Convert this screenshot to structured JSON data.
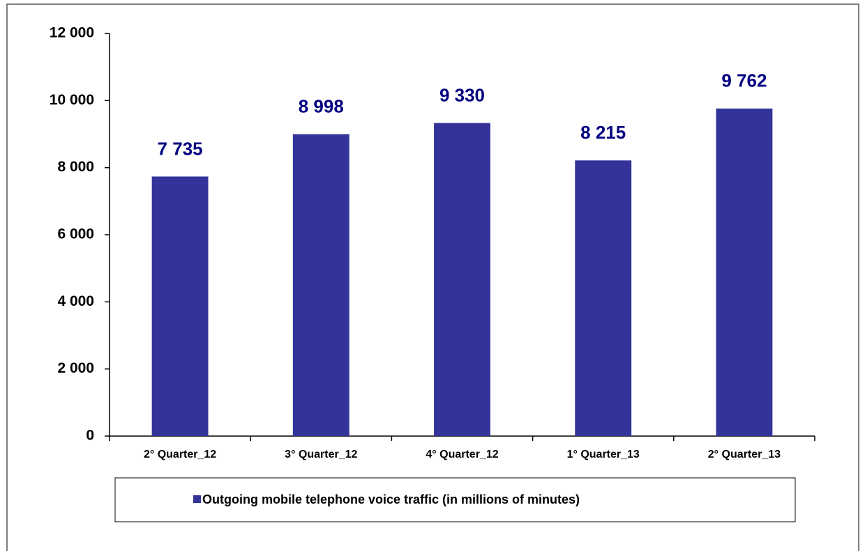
{
  "chart_data": {
    "type": "bar",
    "categories": [
      "2° Quarter_12",
      "3° Quarter_12",
      "4° Quarter_12",
      "1° Quarter_13",
      "2° Quarter_13"
    ],
    "series": [
      {
        "name": "Outgoing mobile telephone voice traffic (in millions of minutes)",
        "color": "#333399",
        "values": [
          7735,
          8998,
          9330,
          8215,
          9762
        ],
        "value_labels": [
          "7 735",
          "8 998",
          "9 330",
          "8 215",
          "9 762"
        ]
      }
    ],
    "ylim": [
      0,
      12000
    ],
    "yticks": [
      0,
      {
        "value": 2000,
        "label": "2 000"
      },
      {
        "value": 4000,
        "label": "4 000"
      },
      {
        "value": 6000,
        "label": "6 000"
      },
      {
        "value": 8000,
        "label": "8 000"
      },
      {
        "value": 10000,
        "label": "10 000"
      },
      {
        "value": 12000,
        "label": "12 000"
      }
    ],
    "legend": "bottom"
  }
}
